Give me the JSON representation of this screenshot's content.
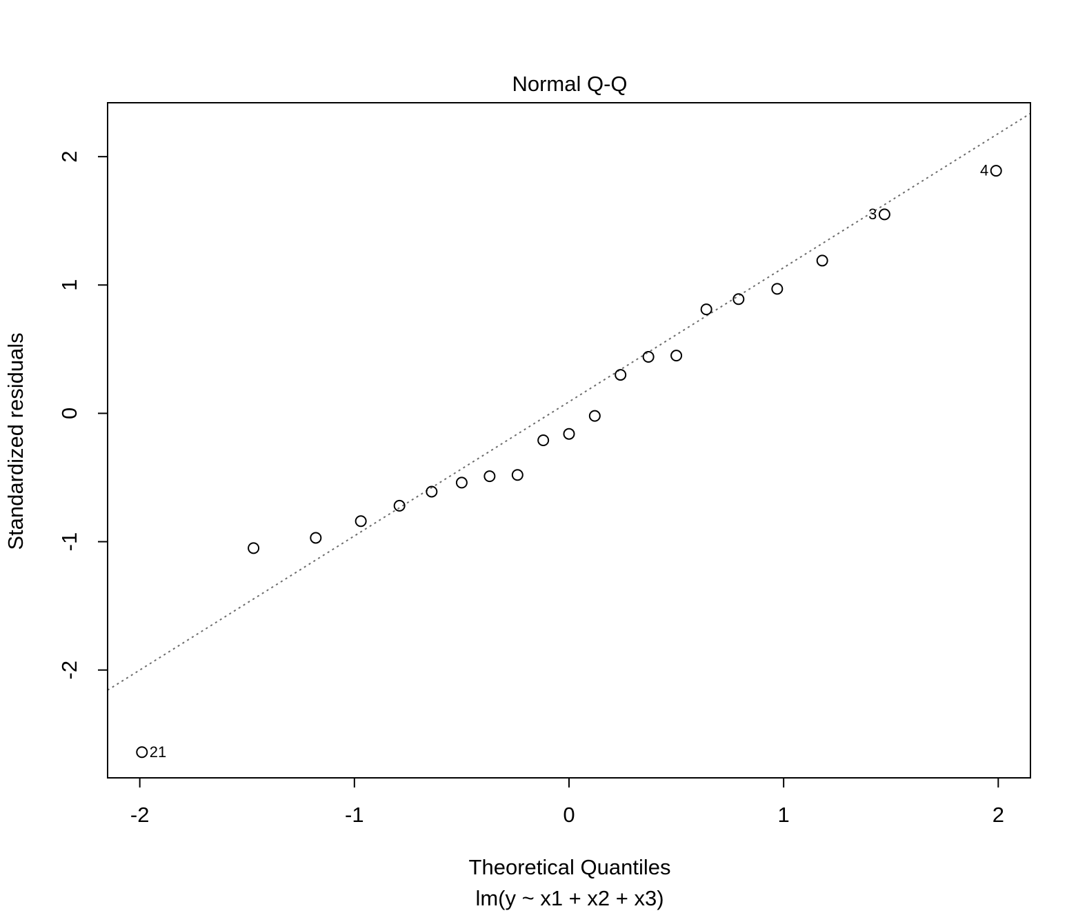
{
  "chart_data": {
    "type": "scatter",
    "title": "Normal Q-Q",
    "xlabel": "Theoretical Quantiles",
    "subtitle": "lm(y ~ x1 + x2 + x3)",
    "ylabel": "Standardized residuals",
    "xlim": [
      -2.15,
      2.15
    ],
    "ylim": [
      -2.84,
      2.42
    ],
    "x_ticks": [
      -2,
      -1,
      0,
      1,
      2
    ],
    "y_ticks": [
      -2,
      -1,
      0,
      1,
      2
    ],
    "x_tick_labels": [
      "-2",
      "-1",
      "0",
      "1",
      "2"
    ],
    "y_tick_labels": [
      "-2",
      "-1",
      "0",
      "1",
      "2"
    ],
    "grid": false,
    "reference_line": {
      "slope": 1.045,
      "intercept": 0.09,
      "style": "dotted",
      "color": "#6b6b6b"
    },
    "points": [
      {
        "x": -1.99,
        "y": -2.64,
        "label": "21"
      },
      {
        "x": -1.47,
        "y": -1.05
      },
      {
        "x": -1.18,
        "y": -0.97
      },
      {
        "x": -0.97,
        "y": -0.84
      },
      {
        "x": -0.79,
        "y": -0.72
      },
      {
        "x": -0.64,
        "y": -0.61
      },
      {
        "x": -0.5,
        "y": -0.54
      },
      {
        "x": -0.37,
        "y": -0.49
      },
      {
        "x": -0.24,
        "y": -0.48
      },
      {
        "x": -0.12,
        "y": -0.21
      },
      {
        "x": 0.0,
        "y": -0.16
      },
      {
        "x": 0.12,
        "y": -0.02
      },
      {
        "x": 0.24,
        "y": 0.3
      },
      {
        "x": 0.37,
        "y": 0.44
      },
      {
        "x": 0.5,
        "y": 0.45
      },
      {
        "x": 0.64,
        "y": 0.81
      },
      {
        "x": 0.79,
        "y": 0.89
      },
      {
        "x": 0.97,
        "y": 0.97
      },
      {
        "x": 1.18,
        "y": 1.19
      },
      {
        "x": 1.47,
        "y": 1.55,
        "label": "3"
      },
      {
        "x": 1.99,
        "y": 1.89,
        "label": "4"
      }
    ]
  }
}
